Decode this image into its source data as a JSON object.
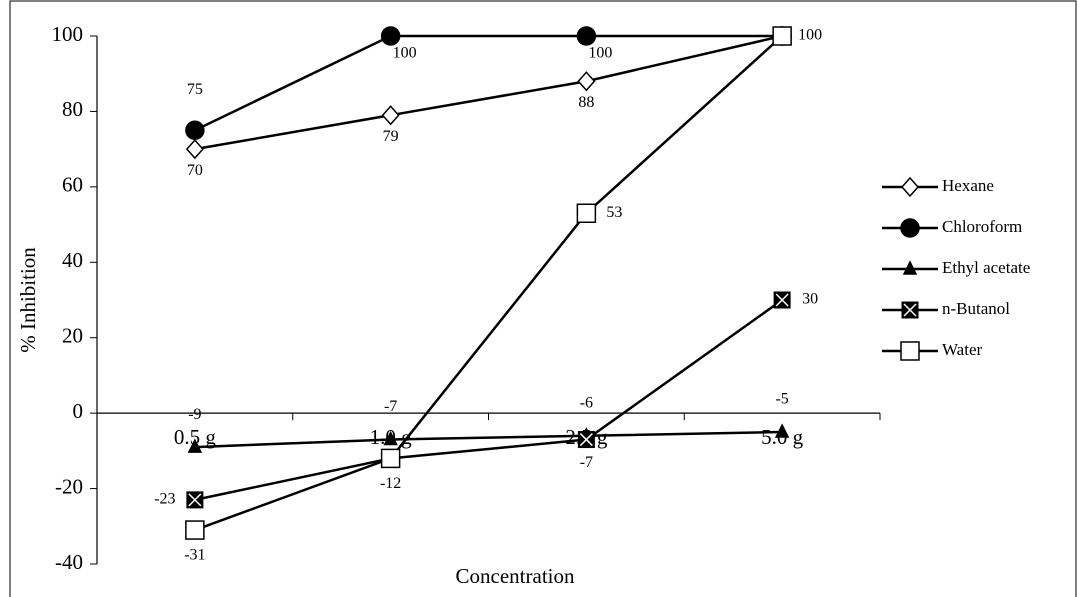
{
  "chart_data": {
    "type": "line",
    "x_label": "Concentration",
    "y_label": "% Inhibition",
    "categories": [
      "0.5 g",
      "1.0 g",
      "2.5 g",
      "5.0 g"
    ],
    "ylim": [
      -40,
      100
    ],
    "yticks": [
      -40,
      -20,
      0,
      20,
      40,
      60,
      80,
      100
    ],
    "legend": "right",
    "series": [
      {
        "name": "Hexane",
        "color": "#000000",
        "marker": "diamond",
        "values": [
          70,
          79,
          88,
          100
        ],
        "value_labels": [
          "70",
          "79",
          "88",
          null
        ]
      },
      {
        "name": "Chloroform",
        "color": "#000000",
        "marker": "circle",
        "values": [
          75,
          100,
          100,
          100
        ],
        "value_labels": [
          "75",
          "100",
          "100",
          null
        ]
      },
      {
        "name": "Ethyl acetate",
        "color": "#000000",
        "marker": "triangle",
        "values": [
          -9,
          -7,
          -6,
          -5
        ],
        "value_labels": [
          "-9",
          "-7",
          "-6",
          "-5"
        ]
      },
      {
        "name": "n-Butanol",
        "color": "#000000",
        "marker": "xsquare",
        "values": [
          -23,
          -12,
          -7,
          30
        ],
        "value_labels": [
          "-23",
          null,
          "-7",
          "30"
        ]
      },
      {
        "name": "Water",
        "color": "#000000",
        "marker": "square",
        "values": [
          -31,
          -12,
          53,
          100
        ],
        "value_labels": [
          "-31",
          "-12",
          "53",
          "100"
        ]
      }
    ]
  }
}
